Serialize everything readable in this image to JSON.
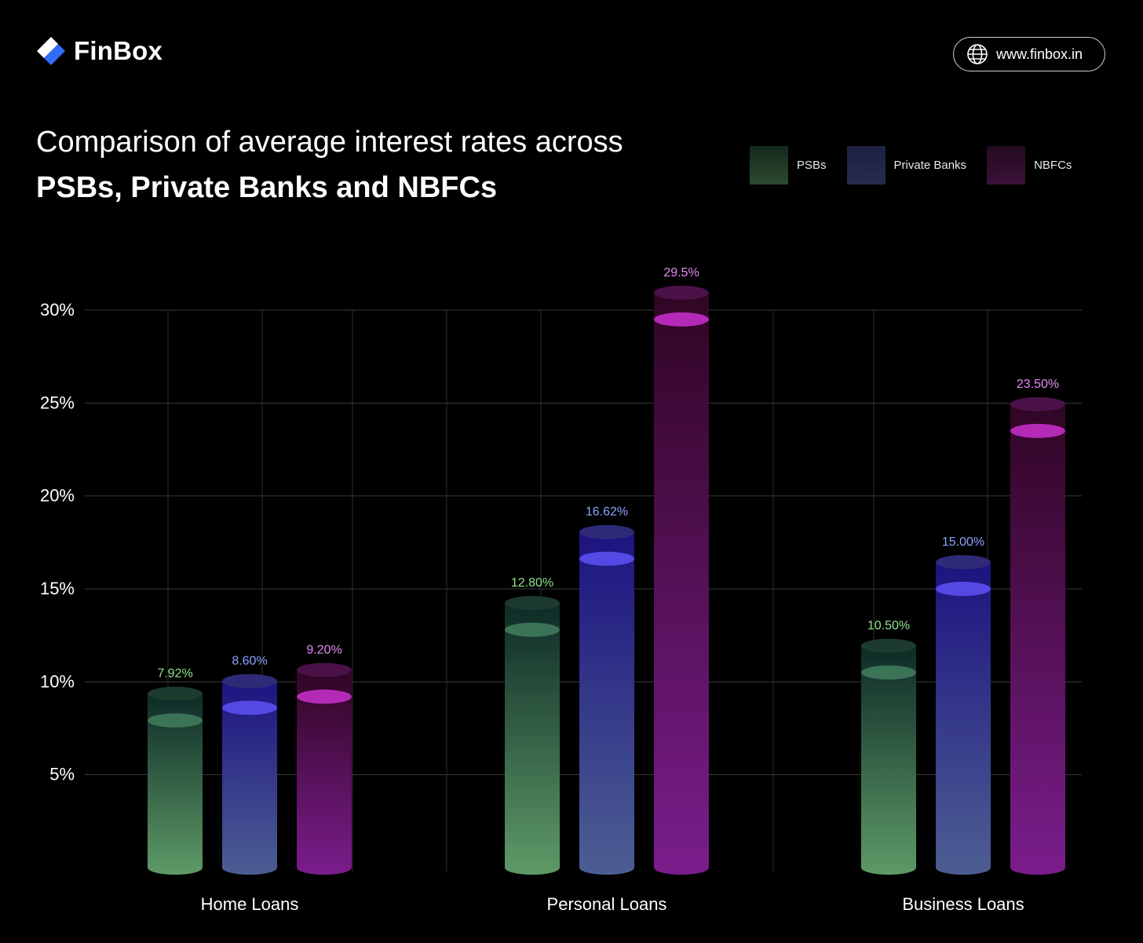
{
  "brand": {
    "name": "FinBox",
    "logo_icon": "finbox-logo-icon"
  },
  "website": {
    "icon": "globe-icon",
    "url": "www.finbox.in"
  },
  "title": {
    "line1": "Comparison of average interest rates across",
    "line2": "PSBs, Private Banks and NBFCs"
  },
  "legend": [
    {
      "label": "PSBs",
      "color": "#2f5a3a"
    },
    {
      "label": "Private Banks",
      "color": "#272f5c"
    },
    {
      "label": "NBFCs",
      "color": "#3e1540"
    }
  ],
  "chart_data": {
    "type": "bar",
    "title": "Comparison of average interest rates across PSBs, Private Banks and NBFCs",
    "xlabel": "",
    "ylabel": "",
    "ylim": [
      0,
      30
    ],
    "y_ticks": [
      5,
      10,
      15,
      20,
      25,
      30
    ],
    "y_tick_labels": [
      "5%",
      "10%",
      "15%",
      "20%",
      "25%",
      "30%"
    ],
    "grid": true,
    "legend_position": "top-right",
    "categories": [
      "Home Loans",
      "Personal Loans",
      "Business Loans"
    ],
    "series": [
      {
        "name": "PSBs",
        "values": [
          7.92,
          12.8,
          10.5
        ],
        "labels": [
          "7.92%",
          "12.80%",
          "10.50%"
        ],
        "label_color": "#8ee38a",
        "color_top": "#0d2a26",
        "color_bottom": "#5e9a67"
      },
      {
        "name": "Private Banks",
        "values": [
          8.6,
          16.62,
          15.0
        ],
        "labels": [
          "8.60%",
          "16.62%",
          "15.00%"
        ],
        "label_color": "#8aa4ff",
        "color_top": "#1d1380",
        "color_bottom": "#4d5e93"
      },
      {
        "name": "NBFCs",
        "values": [
          9.2,
          29.5,
          23.5
        ],
        "labels": [
          "9.20%",
          "29.5%",
          "23.50%"
        ],
        "label_color": "#e68af5",
        "color_top": "#300523",
        "color_bottom": "#7a1d8c"
      }
    ]
  }
}
